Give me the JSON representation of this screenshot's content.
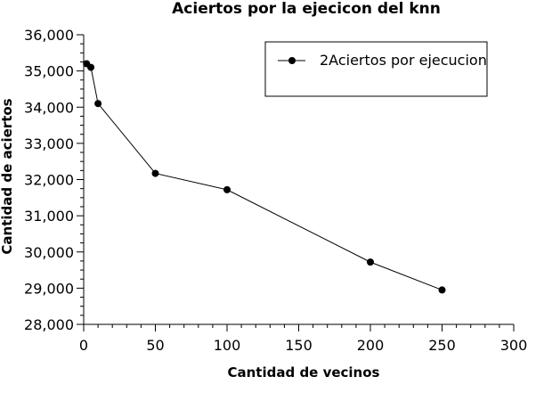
{
  "chart_data": {
    "type": "line",
    "title": "Aciertos por la ejecicon del knn",
    "xlabel": "Cantidad de vecinos",
    "ylabel": "Cantidad de aciertos",
    "xlim": [
      0,
      300
    ],
    "ylim": [
      28000,
      36000
    ],
    "xticks": [
      0,
      50,
      100,
      150,
      200,
      250,
      300
    ],
    "xtick_labels": [
      "0",
      "50",
      "100",
      "150",
      "200",
      "250",
      "300"
    ],
    "yticks": [
      28000,
      29000,
      30000,
      31000,
      32000,
      33000,
      34000,
      35000,
      36000
    ],
    "ytick_labels": [
      "28,000",
      "29,000",
      "30,000",
      "31,000",
      "32,000",
      "33,000",
      "34,000",
      "35,000",
      "36,000"
    ],
    "grid": false,
    "legend_position": "top-right",
    "series": [
      {
        "name": "2Aciertos por ejecucion",
        "color": "#000000",
        "x": [
          2,
          5,
          10,
          50,
          100,
          200,
          250
        ],
        "y": [
          35200,
          35100,
          34100,
          32170,
          31720,
          29720,
          28950
        ]
      }
    ]
  }
}
